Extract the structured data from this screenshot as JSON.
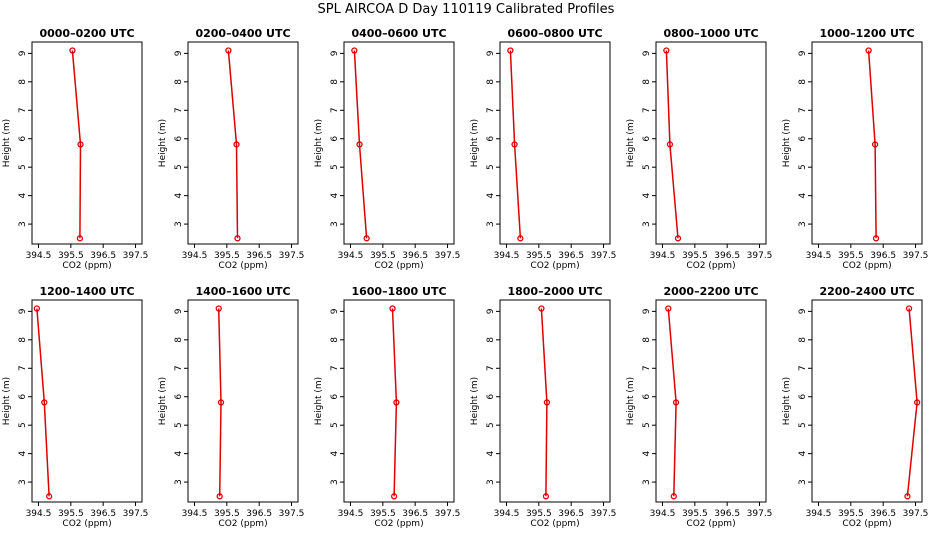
{
  "title": "SPL AIRCOA D  Day 110119  Calibrated Profiles",
  "chart_data": {
    "type": "line",
    "xlabel": "CO2 (ppm)",
    "ylabel": "Height (m)",
    "xlim": [
      394.3,
      397.7
    ],
    "ylim": [
      2.3,
      9.4
    ],
    "xticks": [
      "394.5",
      "395.5",
      "396.5",
      "397.5"
    ],
    "xtick_values": [
      394.5,
      395.5,
      396.5,
      397.5
    ],
    "yticks": [
      "3",
      "4",
      "5",
      "6",
      "7",
      "8",
      "9"
    ],
    "yticks_values": [
      3,
      4,
      5,
      6,
      7,
      8,
      9
    ],
    "heights": [
      9.1,
      5.8,
      2.5
    ],
    "line_color": "#dd0000",
    "grid": false,
    "panels": [
      {
        "title": "0000–0200 UTC",
        "co2": [
          395.55,
          395.8,
          395.78
        ]
      },
      {
        "title": "0200–0400 UTC",
        "co2": [
          395.55,
          395.8,
          395.83
        ]
      },
      {
        "title": "0400–0600 UTC",
        "co2": [
          394.62,
          394.78,
          395.0
        ]
      },
      {
        "title": "0600–0800 UTC",
        "co2": [
          394.62,
          394.75,
          394.93
        ]
      },
      {
        "title": "0800–1000 UTC",
        "co2": [
          394.62,
          394.73,
          394.98
        ]
      },
      {
        "title": "1000–1200 UTC",
        "co2": [
          396.05,
          396.25,
          396.28
        ]
      },
      {
        "title": "1200–1400 UTC",
        "co2": [
          394.45,
          394.68,
          394.83
        ]
      },
      {
        "title": "1400–1600 UTC",
        "co2": [
          395.25,
          395.32,
          395.28
        ]
      },
      {
        "title": "1600–1800 UTC",
        "co2": [
          395.8,
          395.92,
          395.85
        ]
      },
      {
        "title": "1800–2000 UTC",
        "co2": [
          395.58,
          395.75,
          395.72
        ]
      },
      {
        "title": "2000–2200 UTC",
        "co2": [
          394.68,
          394.92,
          394.85
        ]
      },
      {
        "title": "2200–2400 UTC",
        "co2": [
          397.3,
          397.55,
          397.25
        ]
      }
    ]
  }
}
